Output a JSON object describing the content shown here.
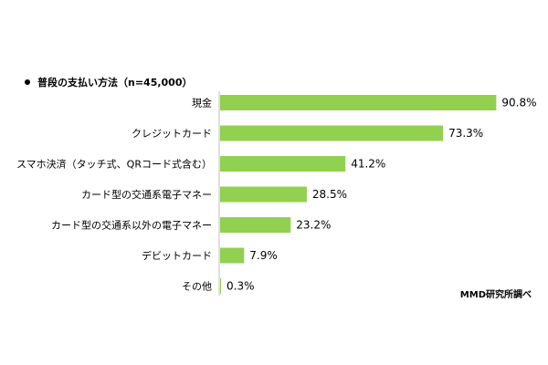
{
  "chart_data": {
    "type": "bar",
    "orientation": "horizontal",
    "title": "普段の支払い方法（n=45,000）",
    "categories": [
      "現金",
      "クレジットカード",
      "スマホ決済（タッチ式、QRコード式含む）",
      "カード型の交通系電子マネー",
      "カード型の交通系以外の電子マネー",
      "デビットカード",
      "その他"
    ],
    "values": [
      90.8,
      73.3,
      41.2,
      28.5,
      23.2,
      7.9,
      0.3
    ],
    "value_labels": [
      "90.8%",
      "73.3%",
      "41.2%",
      "28.5%",
      "23.2%",
      "7.9%",
      "0.3%"
    ],
    "xlim": [
      0,
      100
    ],
    "grid": false,
    "bar_color": "#92d050",
    "axis_color": "#bfbfbf",
    "source_note": "MMD研究所調べ"
  }
}
